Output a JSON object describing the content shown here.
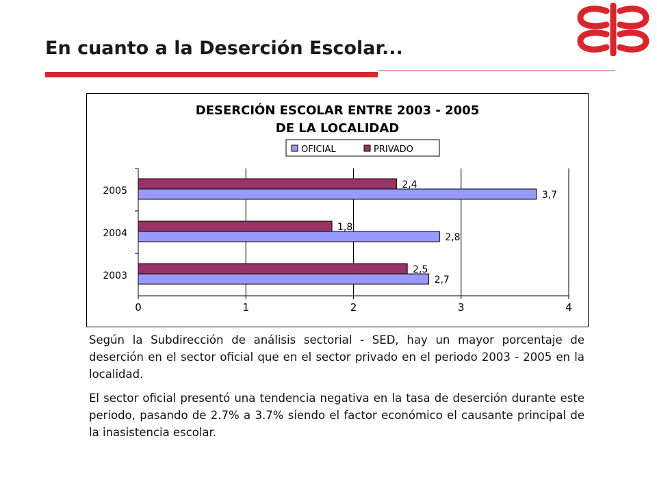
{
  "slide": {
    "title": "En cuanto a la Deserción Escolar...",
    "paragraphs": [
      "Según la Subdirección de análisis sectorial - SED, hay un mayor porcentaje de deserción en el sector oficial que en el sector privado en el periodo 2003 - 2005 en la localidad.",
      "El sector oficial presentó una tendencia negativa en la tasa de deserción durante este periodo, pasando de 2.7% a 3.7% siendo el factor económico el causante principal de la inasistencia escolar."
    ]
  },
  "colors": {
    "accent": "#d9262c",
    "oficial": "#9999ff",
    "privado": "#993366"
  },
  "chart_data": {
    "type": "bar",
    "orientation": "horizontal",
    "title_lines": [
      "DESERCIÓN ESCOLAR ENTRE 2003 - 2005",
      "DE LA LOCALIDAD"
    ],
    "categories": [
      "2003",
      "2004",
      "2005"
    ],
    "series": [
      {
        "name": "OFICIAL",
        "values": [
          2.7,
          2.8,
          3.7
        ],
        "labels": [
          "2,7",
          "2,8",
          "3,7"
        ]
      },
      {
        "name": "PRIVADO",
        "values": [
          2.5,
          1.8,
          2.4
        ],
        "labels": [
          "2,5",
          "1,8",
          "2,4"
        ]
      }
    ],
    "xlim": [
      0,
      4
    ],
    "xticks": [
      "0",
      "1",
      "2",
      "3",
      "4"
    ],
    "grid": "vertical",
    "legend": "top"
  }
}
